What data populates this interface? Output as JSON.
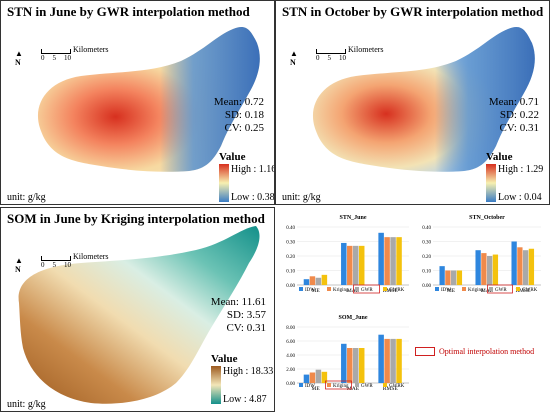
{
  "panels": [
    {
      "title": "STN in June by GWR interpolation method",
      "stats": {
        "mean": "Mean: 0.72",
        "sd": "SD: 0.18",
        "cv": "CV: 0.25"
      },
      "legend": {
        "title": "Value",
        "high": "High : 1.16",
        "low": "Low : 0.38"
      },
      "unit": "unit: g/kg",
      "scale": {
        "label": "Kilometers",
        "ticks": [
          "0",
          "5",
          "10"
        ]
      },
      "north": "N"
    },
    {
      "title": "STN in October by GWR interpolation method",
      "stats": {
        "mean": "Mean: 0.71",
        "sd": "SD: 0.22",
        "cv": "CV: 0.31"
      },
      "legend": {
        "title": "Value",
        "high": "High : 1.29",
        "low": "Low : 0.04"
      },
      "unit": "unit: g/kg",
      "scale": {
        "label": "Kilometers",
        "ticks": [
          "0",
          "5",
          "10"
        ]
      },
      "north": "N"
    },
    {
      "title": "SOM in June by Kriging interpolation method",
      "stats": {
        "mean": "Mean: 11.61",
        "sd": "SD: 3.57",
        "cv": "CV: 0.31"
      },
      "legend": {
        "title": "Value",
        "high": "High : 18.33",
        "low": "Low : 4.87"
      },
      "unit": "unit: g/kg",
      "scale": {
        "label": "Kilometers",
        "ticks": [
          "0",
          "5",
          "10"
        ]
      },
      "north": "N"
    }
  ],
  "optimal_label": "Optimal interpolation method",
  "colors": {
    "idw": "#2e86de",
    "kriging": "#f08a4b",
    "gwr": "#a9a9a9",
    "gwrk": "#f4c20d",
    "map_high": "#d7301f",
    "map_mid": "#f7e7a1",
    "map_low": "#3b7dc4",
    "som_high": "#b5651d",
    "som_mid": "#f3e6b8",
    "som_low": "#1e9a8e"
  },
  "chart_data": [
    {
      "type": "bar",
      "title": "STN_June",
      "categories": [
        "ME",
        "MAE",
        "RMSE"
      ],
      "ylim": [
        0,
        0.4
      ],
      "yticks": [
        "0.00",
        "0.10",
        "0.20",
        "0.30",
        "0.40"
      ],
      "series": [
        {
          "name": "IDW",
          "values": [
            0.04,
            0.29,
            0.36
          ]
        },
        {
          "name": "Kriging",
          "values": [
            0.06,
            0.27,
            0.33
          ]
        },
        {
          "name": "GWR",
          "values": [
            0.05,
            0.27,
            0.33
          ]
        },
        {
          "name": "GWRK",
          "values": [
            0.07,
            0.27,
            0.33
          ]
        }
      ],
      "legend": [
        "IDW",
        "Kriging",
        "GWR",
        "GWRK"
      ],
      "highlight": "GWR"
    },
    {
      "type": "bar",
      "title": "STN_October",
      "categories": [
        "ME",
        "MAE",
        "RMSE"
      ],
      "ylim": [
        0,
        0.4
      ],
      "yticks": [
        "0.00",
        "0.10",
        "0.20",
        "0.30",
        "0.40"
      ],
      "series": [
        {
          "name": "IDW",
          "values": [
            0.13,
            0.24,
            0.3
          ]
        },
        {
          "name": "Kriging",
          "values": [
            0.1,
            0.22,
            0.26
          ]
        },
        {
          "name": "GWR",
          "values": [
            0.1,
            0.2,
            0.24
          ]
        },
        {
          "name": "GWRK",
          "values": [
            0.1,
            0.21,
            0.25
          ]
        }
      ],
      "legend": [
        "IDW",
        "Kriging",
        "GWR",
        "GWRK"
      ],
      "highlight": "GWR"
    },
    {
      "type": "bar",
      "title": "SOM_June",
      "categories": [
        "ME",
        "MAE",
        "RMSE"
      ],
      "ylim": [
        0,
        8
      ],
      "yticks": [
        "0.00",
        "2.00",
        "4.00",
        "6.00",
        "8.00"
      ],
      "series": [
        {
          "name": "IDW",
          "values": [
            1.2,
            5.6,
            6.9
          ]
        },
        {
          "name": "Kriging",
          "values": [
            1.5,
            5.0,
            6.3
          ]
        },
        {
          "name": "GWR",
          "values": [
            1.9,
            5.0,
            6.3
          ]
        },
        {
          "name": "GWRK",
          "values": [
            1.6,
            5.0,
            6.3
          ]
        }
      ],
      "legend": [
        "IDW",
        "Kriging",
        "GWR",
        "GWRK"
      ],
      "highlight": "Kriging"
    }
  ]
}
